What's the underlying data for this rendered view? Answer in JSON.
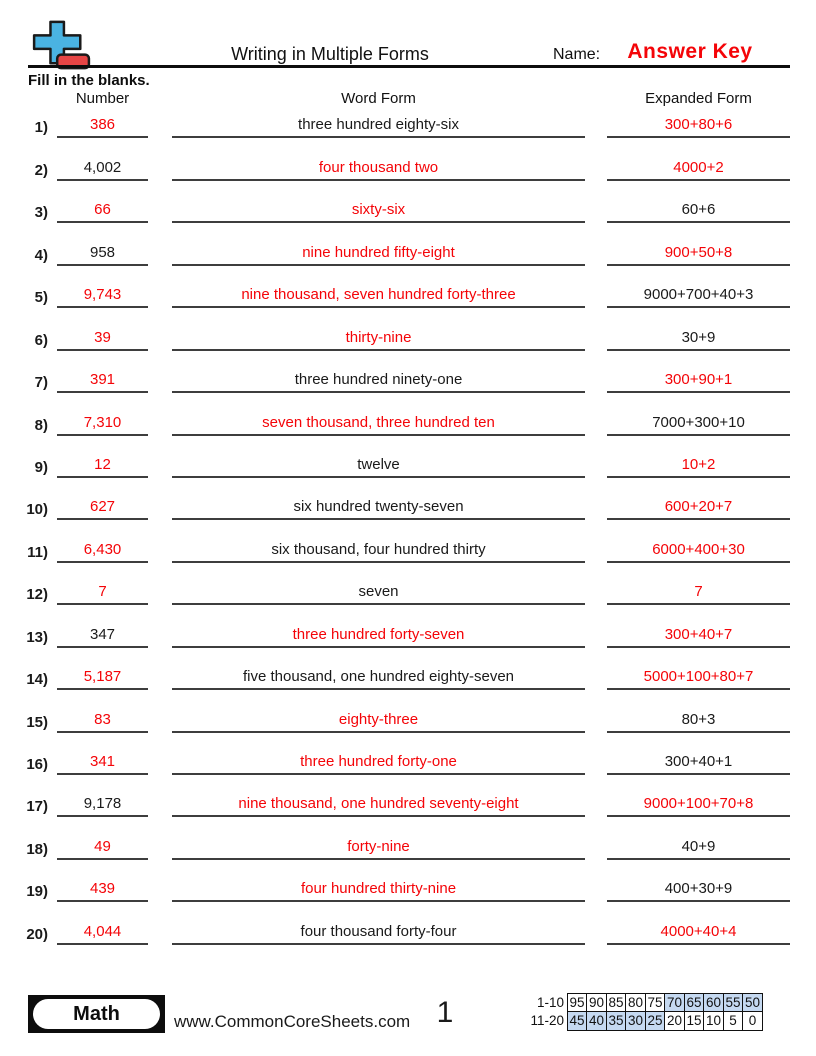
{
  "header": {
    "title": "Writing in Multiple Forms",
    "name_label": "Name:",
    "name_value": "Answer Key",
    "instructions": "Fill in the blanks.",
    "columns": {
      "number": "Number",
      "word": "Word Form",
      "expanded": "Expanded Form"
    }
  },
  "rows": [
    {
      "label": "1)",
      "number": "386",
      "number_answer": true,
      "word": "three hundred eighty-six",
      "word_answer": false,
      "expanded": "300+80+6",
      "expanded_answer": true
    },
    {
      "label": "2)",
      "number": "4,002",
      "number_answer": false,
      "word": "four thousand two",
      "word_answer": true,
      "expanded": "4000+2",
      "expanded_answer": true
    },
    {
      "label": "3)",
      "number": "66",
      "number_answer": true,
      "word": "sixty-six",
      "word_answer": true,
      "expanded": "60+6",
      "expanded_answer": false
    },
    {
      "label": "4)",
      "number": "958",
      "number_answer": false,
      "word": "nine hundred fifty-eight",
      "word_answer": true,
      "expanded": "900+50+8",
      "expanded_answer": true
    },
    {
      "label": "5)",
      "number": "9,743",
      "number_answer": true,
      "word": "nine thousand, seven hundred forty-three",
      "word_answer": true,
      "expanded": "9000+700+40+3",
      "expanded_answer": false
    },
    {
      "label": "6)",
      "number": "39",
      "number_answer": true,
      "word": "thirty-nine",
      "word_answer": true,
      "expanded": "30+9",
      "expanded_answer": false
    },
    {
      "label": "7)",
      "number": "391",
      "number_answer": true,
      "word": "three hundred ninety-one",
      "word_answer": false,
      "expanded": "300+90+1",
      "expanded_answer": true
    },
    {
      "label": "8)",
      "number": "7,310",
      "number_answer": true,
      "word": "seven thousand, three hundred ten",
      "word_answer": true,
      "expanded": "7000+300+10",
      "expanded_answer": false
    },
    {
      "label": "9)",
      "number": "12",
      "number_answer": true,
      "word": "twelve",
      "word_answer": false,
      "expanded": "10+2",
      "expanded_answer": true
    },
    {
      "label": "10)",
      "number": "627",
      "number_answer": true,
      "word": "six hundred twenty-seven",
      "word_answer": false,
      "expanded": "600+20+7",
      "expanded_answer": true
    },
    {
      "label": "11)",
      "number": "6,430",
      "number_answer": true,
      "word": "six thousand, four hundred thirty",
      "word_answer": false,
      "expanded": "6000+400+30",
      "expanded_answer": true
    },
    {
      "label": "12)",
      "number": "7",
      "number_answer": true,
      "word": "seven",
      "word_answer": false,
      "expanded": "7",
      "expanded_answer": true
    },
    {
      "label": "13)",
      "number": "347",
      "number_answer": false,
      "word": "three hundred forty-seven",
      "word_answer": true,
      "expanded": "300+40+7",
      "expanded_answer": true
    },
    {
      "label": "14)",
      "number": "5,187",
      "number_answer": true,
      "word": "five thousand, one hundred eighty-seven",
      "word_answer": false,
      "expanded": "5000+100+80+7",
      "expanded_answer": true
    },
    {
      "label": "15)",
      "number": "83",
      "number_answer": true,
      "word": "eighty-three",
      "word_answer": true,
      "expanded": "80+3",
      "expanded_answer": false
    },
    {
      "label": "16)",
      "number": "341",
      "number_answer": true,
      "word": "three hundred forty-one",
      "word_answer": true,
      "expanded": "300+40+1",
      "expanded_answer": false
    },
    {
      "label": "17)",
      "number": "9,178",
      "number_answer": false,
      "word": "nine thousand, one hundred seventy-eight",
      "word_answer": true,
      "expanded": "9000+100+70+8",
      "expanded_answer": true
    },
    {
      "label": "18)",
      "number": "49",
      "number_answer": true,
      "word": "forty-nine",
      "word_answer": true,
      "expanded": "40+9",
      "expanded_answer": false
    },
    {
      "label": "19)",
      "number": "439",
      "number_answer": true,
      "word": "four hundred thirty-nine",
      "word_answer": true,
      "expanded": "400+30+9",
      "expanded_answer": false
    },
    {
      "label": "20)",
      "number": "4,044",
      "number_answer": true,
      "word": "four thousand forty-four",
      "word_answer": false,
      "expanded": "4000+40+4",
      "expanded_answer": true
    }
  ],
  "footer": {
    "subject_badge": "Math",
    "website": "www.CommonCoreSheets.com",
    "page_number": "1",
    "score_table": [
      {
        "label": "1-10",
        "values": [
          "95",
          "90",
          "85",
          "80",
          "75",
          "70",
          "65",
          "60",
          "55",
          "50"
        ],
        "shaded": [
          false,
          false,
          false,
          false,
          false,
          true,
          true,
          true,
          true,
          true
        ]
      },
      {
        "label": "11-20",
        "values": [
          "45",
          "40",
          "35",
          "30",
          "25",
          "20",
          "15",
          "10",
          "5",
          "0"
        ],
        "shaded": [
          true,
          true,
          true,
          true,
          true,
          false,
          false,
          false,
          false,
          false
        ]
      }
    ]
  },
  "colors": {
    "answer_red": "#f40408",
    "shaded_cell": "#c5d9f1",
    "logo_blue": "#4ab3e2",
    "logo_red": "#e64545",
    "line_black": "#0d0d0d"
  }
}
